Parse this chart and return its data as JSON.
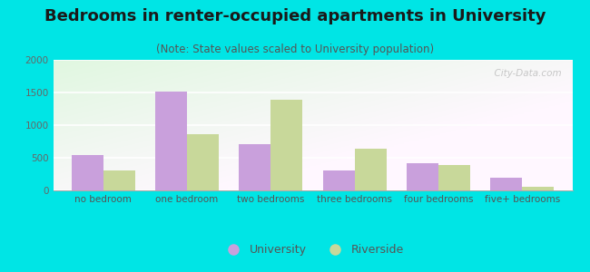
{
  "title": "Bedrooms in renter-occupied apartments in University",
  "subtitle": "(Note: State values scaled to University population)",
  "categories": [
    "no bedroom",
    "one bedroom",
    "two bedrooms",
    "three bedrooms",
    "four bedrooms",
    "five+ bedrooms"
  ],
  "university_values": [
    540,
    1520,
    710,
    300,
    410,
    200
  ],
  "riverside_values": [
    300,
    860,
    1390,
    640,
    390,
    55
  ],
  "university_color": "#c9a0dc",
  "riverside_color": "#c8d89a",
  "background_color": "#00e5e5",
  "ylim": [
    0,
    2000
  ],
  "yticks": [
    0,
    500,
    1000,
    1500,
    2000
  ],
  "bar_width": 0.38,
  "legend_labels": [
    "University",
    "Riverside"
  ],
  "watermark": "  City-Data.com",
  "title_fontsize": 13,
  "subtitle_fontsize": 8.5,
  "tick_fontsize": 7.5,
  "legend_fontsize": 9
}
